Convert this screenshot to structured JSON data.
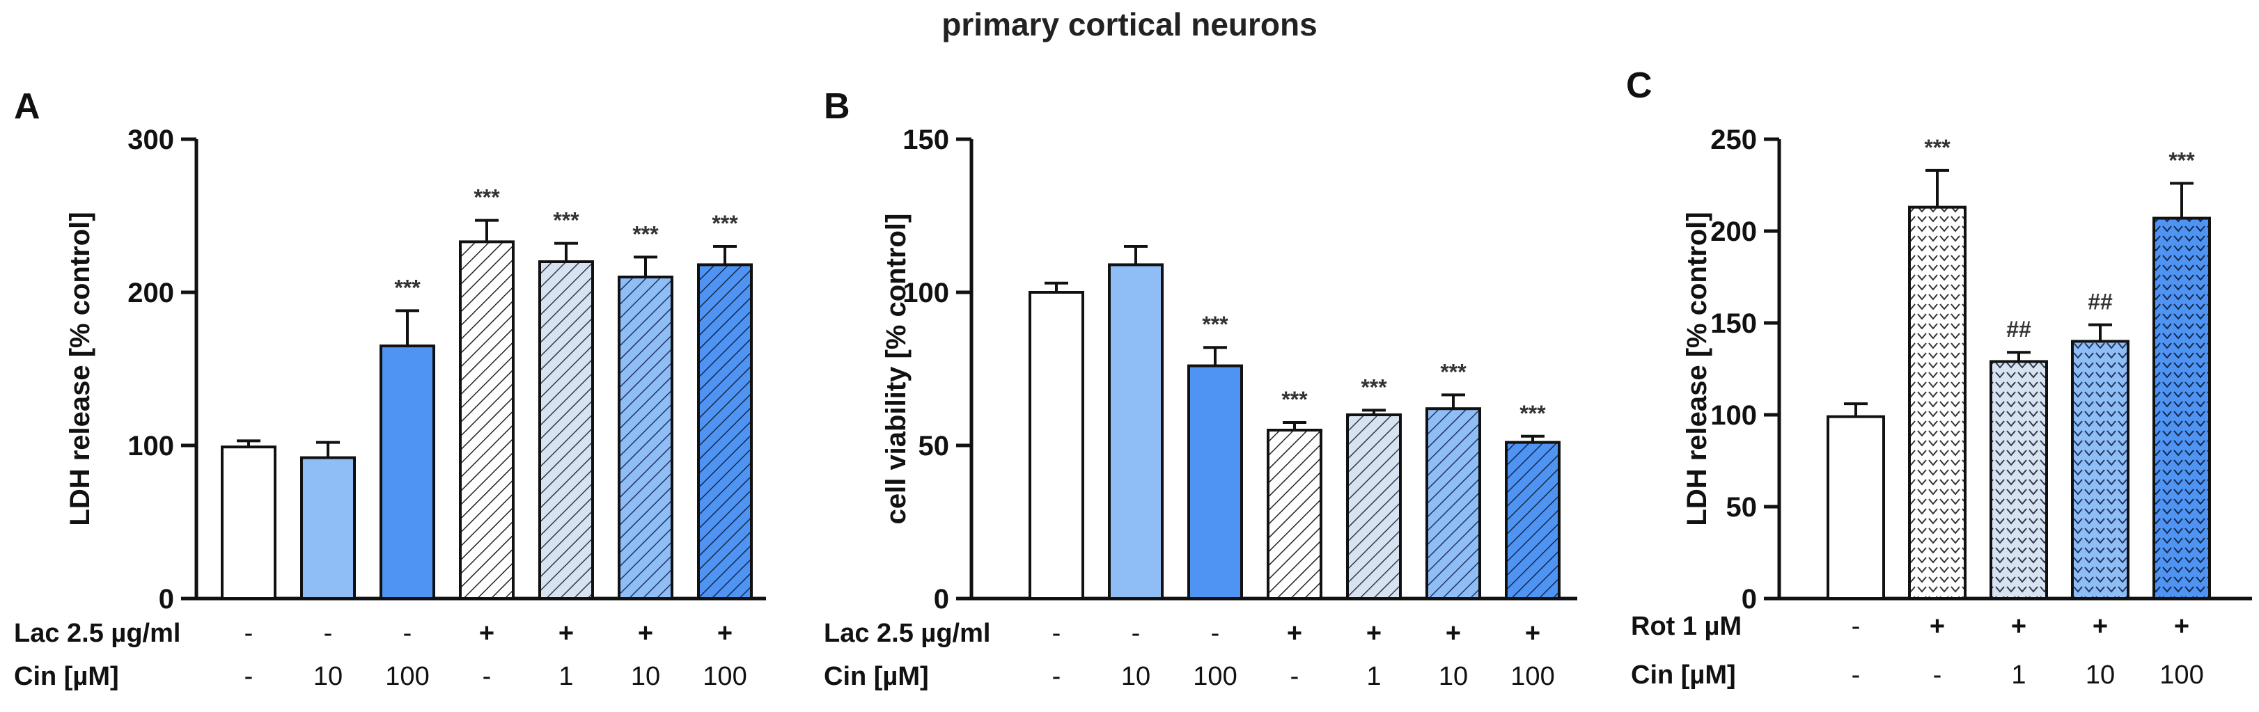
{
  "title": "primary cortical neurons",
  "chart_data": [
    {
      "panel": "A",
      "type": "bar",
      "ylabel": "LDH release [% control]",
      "ylim": [
        0,
        300
      ],
      "yticks": [
        0,
        100,
        200,
        300
      ],
      "values": [
        99,
        92,
        165,
        233,
        220,
        210,
        218
      ],
      "errors": [
        4,
        10,
        23,
        14,
        12,
        13,
        12
      ],
      "significance": [
        "",
        "",
        "***",
        "***",
        "***",
        "***",
        "***"
      ],
      "fills": [
        "#ffffff",
        "#8fbdf5",
        "#4f94f2",
        "hatch-white",
        "hatch-lightgray",
        "hatch-light",
        "hatch-dark"
      ],
      "conditions": [
        {
          "label": "Lac 2.5 µg/ml",
          "values": [
            "-",
            "-",
            "-",
            "+",
            "+",
            "+",
            "+"
          ]
        },
        {
          "label": "Cin [µM]",
          "values": [
            "-",
            "10",
            "100",
            "-",
            "1",
            "10",
            "100"
          ]
        }
      ]
    },
    {
      "panel": "B",
      "type": "bar",
      "ylabel": "cell viability [% control]",
      "ylim": [
        0,
        150
      ],
      "yticks": [
        0,
        50,
        100,
        150
      ],
      "values": [
        100,
        109,
        76,
        55,
        60,
        62,
        51
      ],
      "errors": [
        3,
        6,
        6,
        2.5,
        1.5,
        4.5,
        2
      ],
      "significance": [
        "",
        "",
        "***",
        "***",
        "***",
        "***",
        "***"
      ],
      "fills": [
        "#ffffff",
        "#8fbdf5",
        "#4f94f2",
        "hatch-white",
        "hatch-lightgray",
        "hatch-light",
        "hatch-dark"
      ],
      "conditions": [
        {
          "label": "Lac 2.5 µg/ml",
          "values": [
            "-",
            "-",
            "-",
            "+",
            "+",
            "+",
            "+"
          ]
        },
        {
          "label": "Cin [µM]",
          "values": [
            "-",
            "10",
            "100",
            "-",
            "1",
            "10",
            "100"
          ]
        }
      ]
    },
    {
      "panel": "C",
      "type": "bar",
      "ylabel": "LDH release [% control]",
      "ylim": [
        0,
        250
      ],
      "yticks": [
        0,
        50,
        100,
        150,
        200,
        250
      ],
      "values": [
        99,
        213,
        129,
        140,
        207
      ],
      "errors": [
        7,
        20,
        5,
        9,
        19
      ],
      "significance": [
        "",
        "***",
        "##",
        "##",
        "***"
      ],
      "fills": [
        "#ffffff",
        "chev-white",
        "chev-lightgray",
        "chev-light",
        "chev-dark"
      ],
      "conditions": [
        {
          "label": "Rot 1 µM",
          "values": [
            "-",
            "+",
            "+",
            "+",
            "+"
          ]
        },
        {
          "label": "Cin [µM]",
          "values": [
            "-",
            "-",
            "1",
            "10",
            "100"
          ]
        }
      ]
    }
  ]
}
